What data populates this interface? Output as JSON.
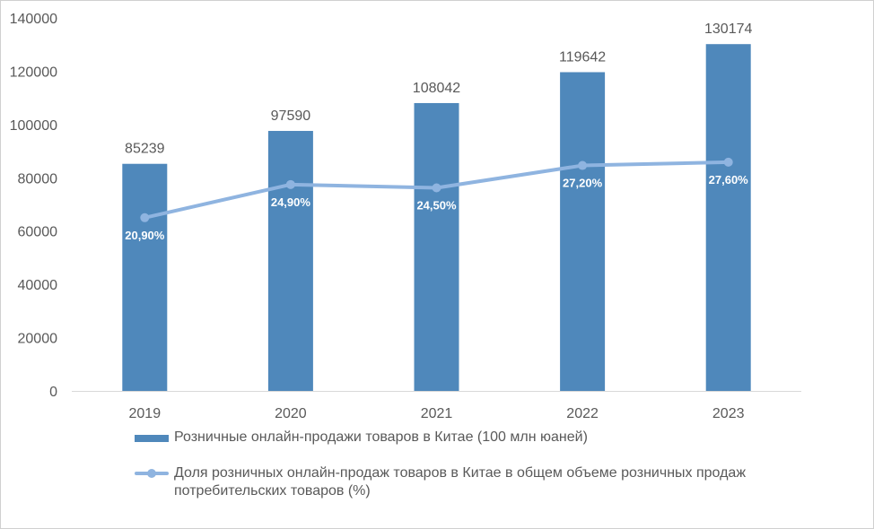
{
  "chart_data": {
    "type": "bar+line",
    "categories": [
      "2019",
      "2020",
      "2021",
      "2022",
      "2023"
    ],
    "series": [
      {
        "name": "Розничные онлайн-продажи товаров в Китае (100 млн юаней)",
        "type": "bar",
        "axis": "primary",
        "color": "#4f88bb",
        "values": [
          85239,
          97590,
          108042,
          119642,
          130174
        ],
        "data_labels": [
          "85239",
          "97590",
          "108042",
          "119642",
          "130174"
        ]
      },
      {
        "name": "Доля розничных онлайн-продаж  товаров в Китае в общем объеме розничных продаж потребительских товаров (%)",
        "type": "line",
        "axis": "secondary",
        "color": "#8fb4e0",
        "values": [
          20.9,
          24.9,
          24.5,
          27.2,
          27.6
        ],
        "data_labels": [
          "20,90%",
          "24,90%",
          "24,50%",
          "27,20%",
          "27,60%"
        ]
      }
    ],
    "yticks": [
      "0",
      "20000",
      "40000",
      "60000",
      "80000",
      "100000",
      "120000",
      "140000"
    ],
    "ylim": [
      0,
      140000
    ],
    "y2lim": [
      0,
      45
    ],
    "grid": false,
    "legend": "bottom"
  }
}
